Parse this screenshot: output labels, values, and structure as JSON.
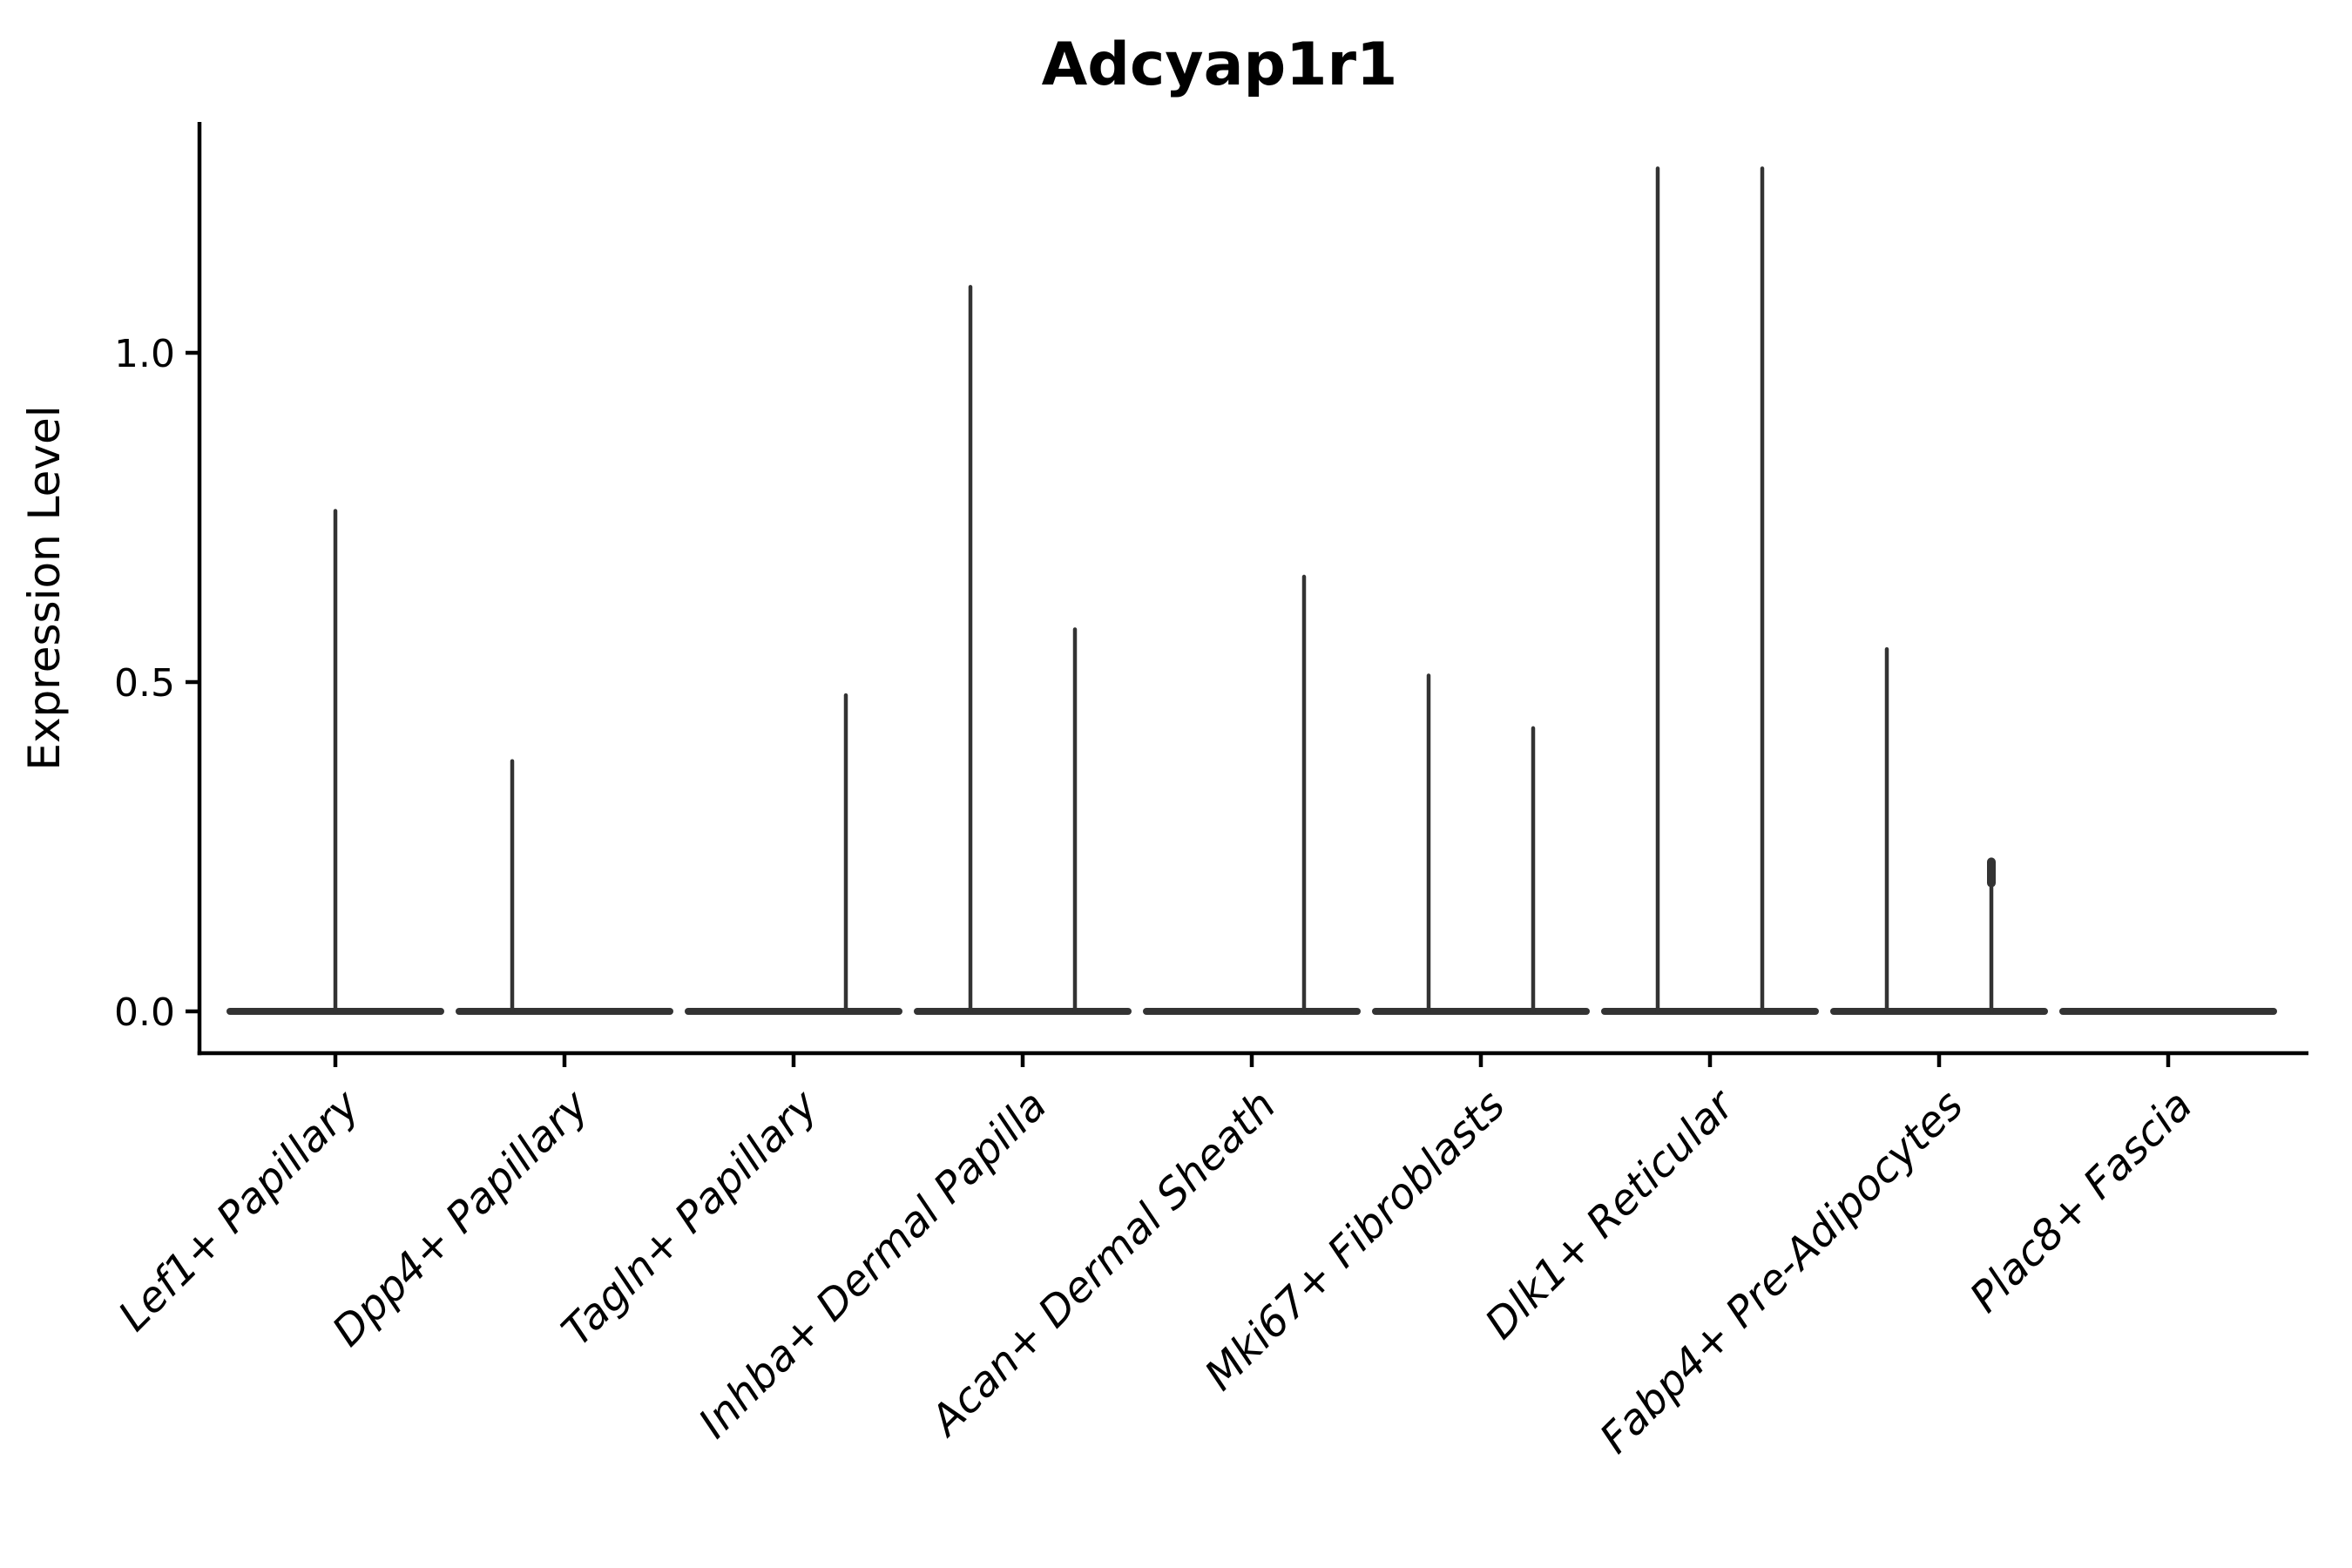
{
  "chart_data": {
    "type": "violin",
    "title": "Adcyap1r1",
    "ylabel": "Expression Level",
    "xlabel": "",
    "grid": false,
    "legend": null,
    "ylim": [
      -0.07,
      1.35
    ],
    "ytick_labels": [
      "0.0",
      "0.5",
      "1.0"
    ],
    "ytick_values": [
      0.0,
      0.5,
      1.0
    ],
    "categories": [
      "Lef1+ Papillary",
      "Dpp4+ Papillary",
      "Tagln+ Papillary",
      "Inhba+ Dermal Papilla",
      "Acan+ Dermal Sheath",
      "Mki67+ Fibroblasts",
      "Dlk1+ Reticular",
      "Fabp4+ Pre-Adipocytes",
      "Plac8+ Fascia"
    ],
    "violins": [
      {
        "category": "Lef1+ Papillary",
        "baseline_value": 0.0,
        "spikes": [
          {
            "pos": "center",
            "max": 0.76
          }
        ]
      },
      {
        "category": "Dpp4+ Papillary",
        "baseline_value": 0.0,
        "spikes": [
          {
            "pos": "left",
            "max": 0.38
          }
        ]
      },
      {
        "category": "Tagln+ Papillary",
        "baseline_value": 0.0,
        "spikes": [
          {
            "pos": "right",
            "max": 0.48
          }
        ]
      },
      {
        "category": "Inhba+ Dermal Papilla",
        "baseline_value": 0.0,
        "spikes": [
          {
            "pos": "left",
            "max": 1.1
          },
          {
            "pos": "right",
            "max": 0.58
          }
        ]
      },
      {
        "category": "Acan+ Dermal Sheath",
        "baseline_value": 0.0,
        "spikes": [
          {
            "pos": "right",
            "max": 0.66
          }
        ]
      },
      {
        "category": "Mki67+ Fibroblasts",
        "baseline_value": 0.0,
        "spikes": [
          {
            "pos": "left",
            "max": 0.51
          },
          {
            "pos": "right",
            "max": 0.43
          }
        ]
      },
      {
        "category": "Dlk1+ Reticular",
        "baseline_value": 0.0,
        "spikes": [
          {
            "pos": "left",
            "max": 1.28
          },
          {
            "pos": "right",
            "max": 1.28
          }
        ]
      },
      {
        "category": "Fabp4+ Pre-Adipocytes",
        "baseline_value": 0.0,
        "spikes": [
          {
            "pos": "left",
            "max": 0.55
          },
          {
            "pos": "right",
            "max": 0.227,
            "knob": true,
            "knob_from": 0.195
          }
        ]
      },
      {
        "category": "Plac8+ Fascia",
        "baseline_value": 0.0,
        "spikes": []
      }
    ],
    "colors": {
      "violin": "#333333",
      "axis": "#000000",
      "text": "#000000",
      "background": "#ffffff"
    }
  }
}
